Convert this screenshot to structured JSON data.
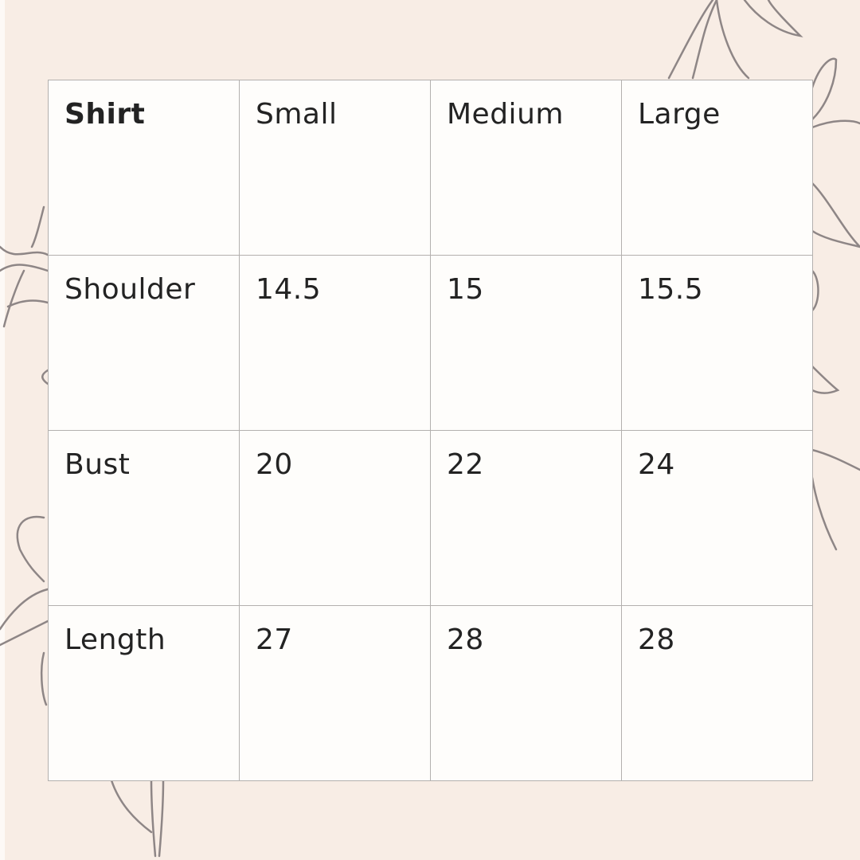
{
  "colors": {
    "background": "#f8ede5",
    "table": "#fefdfb",
    "text": "#232323",
    "border": "#b3b0ae",
    "floral": "#8e8686"
  },
  "decoration": "lily-line-art-icon",
  "table": {
    "columns": [
      "Shirt",
      "Small",
      "Medium",
      "Large"
    ],
    "rows": [
      {
        "label": "Shoulder",
        "values": [
          "14.5",
          "15",
          "15.5"
        ]
      },
      {
        "label": "Bust",
        "values": [
          "20",
          "22",
          "24"
        ]
      },
      {
        "label": "Length",
        "values": [
          "27",
          "28",
          "28"
        ]
      }
    ]
  }
}
